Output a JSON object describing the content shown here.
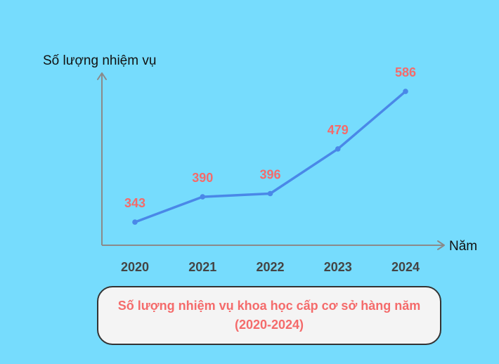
{
  "chart_data": {
    "type": "line",
    "title": "",
    "ylabel": "Số lượng nhiệm vụ",
    "xlabel": "Năm",
    "categories": [
      "2020",
      "2021",
      "2022",
      "2023",
      "2024"
    ],
    "series": [
      {
        "values": [
          343,
          390,
          396,
          479,
          586
        ]
      }
    ],
    "ylim": [
      300,
      620
    ],
    "grid": false,
    "legend": "none"
  },
  "caption": {
    "line1": "Số lượng nhiệm vụ khoa học cấp cơ sở hàng năm",
    "line2": "(2020-2024)"
  },
  "colors": {
    "background": "#76dcfd",
    "line": "#4a88e8",
    "data_label": "#f46b6b",
    "axis": "#8a8a8a",
    "tick_label": "#444444",
    "caption_text": "#f46b6b",
    "caption_bg": "#f4f4f4",
    "caption_border": "#333333"
  }
}
